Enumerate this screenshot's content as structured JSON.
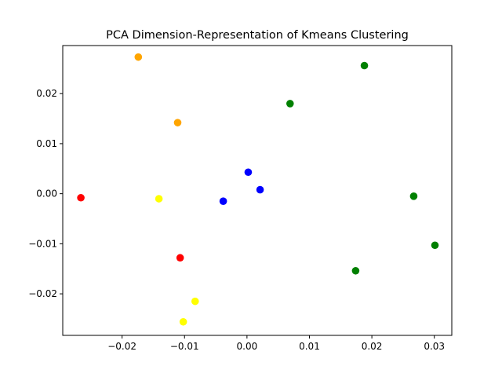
{
  "chart_data": {
    "type": "scatter",
    "title": "PCA Dimension-Representation of Kmeans Clustering",
    "xlabel": "",
    "ylabel": "",
    "xlim": [
      -0.0295,
      0.0328
    ],
    "ylim": [
      -0.0283,
      0.0296
    ],
    "grid": false,
    "x_ticks": [
      {
        "value": -0.02,
        "label": "−0.02"
      },
      {
        "value": -0.01,
        "label": "−0.01"
      },
      {
        "value": 0.0,
        "label": "0.00"
      },
      {
        "value": 0.01,
        "label": "0.01"
      },
      {
        "value": 0.02,
        "label": "0.02"
      },
      {
        "value": 0.03,
        "label": "0.03"
      }
    ],
    "y_ticks": [
      {
        "value": -0.02,
        "label": "−0.02"
      },
      {
        "value": -0.01,
        "label": "−0.01"
      },
      {
        "value": 0.0,
        "label": "0.00"
      },
      {
        "value": 0.01,
        "label": "0.01"
      },
      {
        "value": 0.02,
        "label": "0.02"
      }
    ],
    "series": [
      {
        "color": "#ff0000",
        "points": [
          [
            -0.0266,
            -0.0008
          ],
          [
            -0.0107,
            -0.0128
          ]
        ]
      },
      {
        "color": "#ffa500",
        "points": [
          [
            -0.0174,
            0.0273
          ],
          [
            -0.0111,
            0.0142
          ]
        ]
      },
      {
        "color": "#ffff00",
        "points": [
          [
            -0.0141,
            -0.001
          ],
          [
            -0.0083,
            -0.0215
          ],
          [
            -0.0102,
            -0.0256
          ]
        ]
      },
      {
        "color": "#0000ff",
        "points": [
          [
            0.0002,
            0.0043
          ],
          [
            0.0021,
            0.0008
          ],
          [
            -0.0038,
            -0.0015
          ]
        ]
      },
      {
        "color": "#008000",
        "points": [
          [
            0.0188,
            0.0256
          ],
          [
            0.0069,
            0.018
          ],
          [
            0.0267,
            -0.0005
          ],
          [
            0.0301,
            -0.0103
          ],
          [
            0.0174,
            -0.0154
          ]
        ]
      }
    ]
  }
}
